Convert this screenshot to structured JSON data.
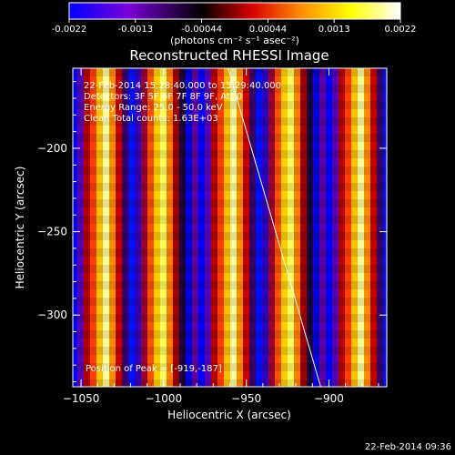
{
  "colorbar": {
    "tick_labels": [
      "-0.0022",
      "-0.0013",
      "-0.00044",
      "0.00044",
      "0.0013",
      "0.0022"
    ],
    "units_label": "(photons cm⁻² s⁻¹ asec⁻²)",
    "colormap": [
      "#0000ff",
      "#7a00d8",
      "#000000",
      "#d80000",
      "#ff8c00",
      "#ffff00",
      "#ffffff"
    ]
  },
  "title": "Reconstructed RHESSI Image",
  "info_lines": [
    "22-Feb-2014 15:28:40.000 to 15:29:40.000",
    "Detectors: 3F 5F 6F 7F 8F 9F, Att 0",
    "Energy Range: 25.0 - 50.0 keV",
    "Clean    Total counts: 1.63E+03"
  ],
  "peak_label": "Position of Peak = [-919,-187]",
  "axes": {
    "xlabel": "Heliocentric X (arcsec)",
    "ylabel": "Heliocentric Y (arcsec)",
    "xlim": [
      -1055,
      -865
    ],
    "ylim": [
      -343,
      -152
    ],
    "xticks": [
      -1050,
      -1000,
      -950,
      -900
    ],
    "xtick_labels": [
      "−1050",
      "−1000",
      "−950",
      "−900"
    ],
    "yticks": [
      -200,
      -250,
      -300
    ],
    "ytick_labels": [
      "−200",
      "−250",
      "−300"
    ]
  },
  "limb_line": {
    "x": [
      -961,
      -905
    ],
    "y": [
      -152,
      -343
    ]
  },
  "footer_timestamp": "22-Feb-2014 09:36",
  "stripe_pattern": [
    "#0000ff",
    "#5a00b4",
    "#b40000",
    "#ff4000",
    "#ffc000",
    "#ffffa0",
    "#ff9000",
    "#c80000",
    "#3c0064",
    "#0010ff",
    "#3000c0",
    "#9a0030",
    "#ff5000",
    "#ffd000",
    "#ffff60",
    "#ff8000",
    "#a00000",
    "#1a0040",
    "#0000e0",
    "#6000a0"
  ]
}
